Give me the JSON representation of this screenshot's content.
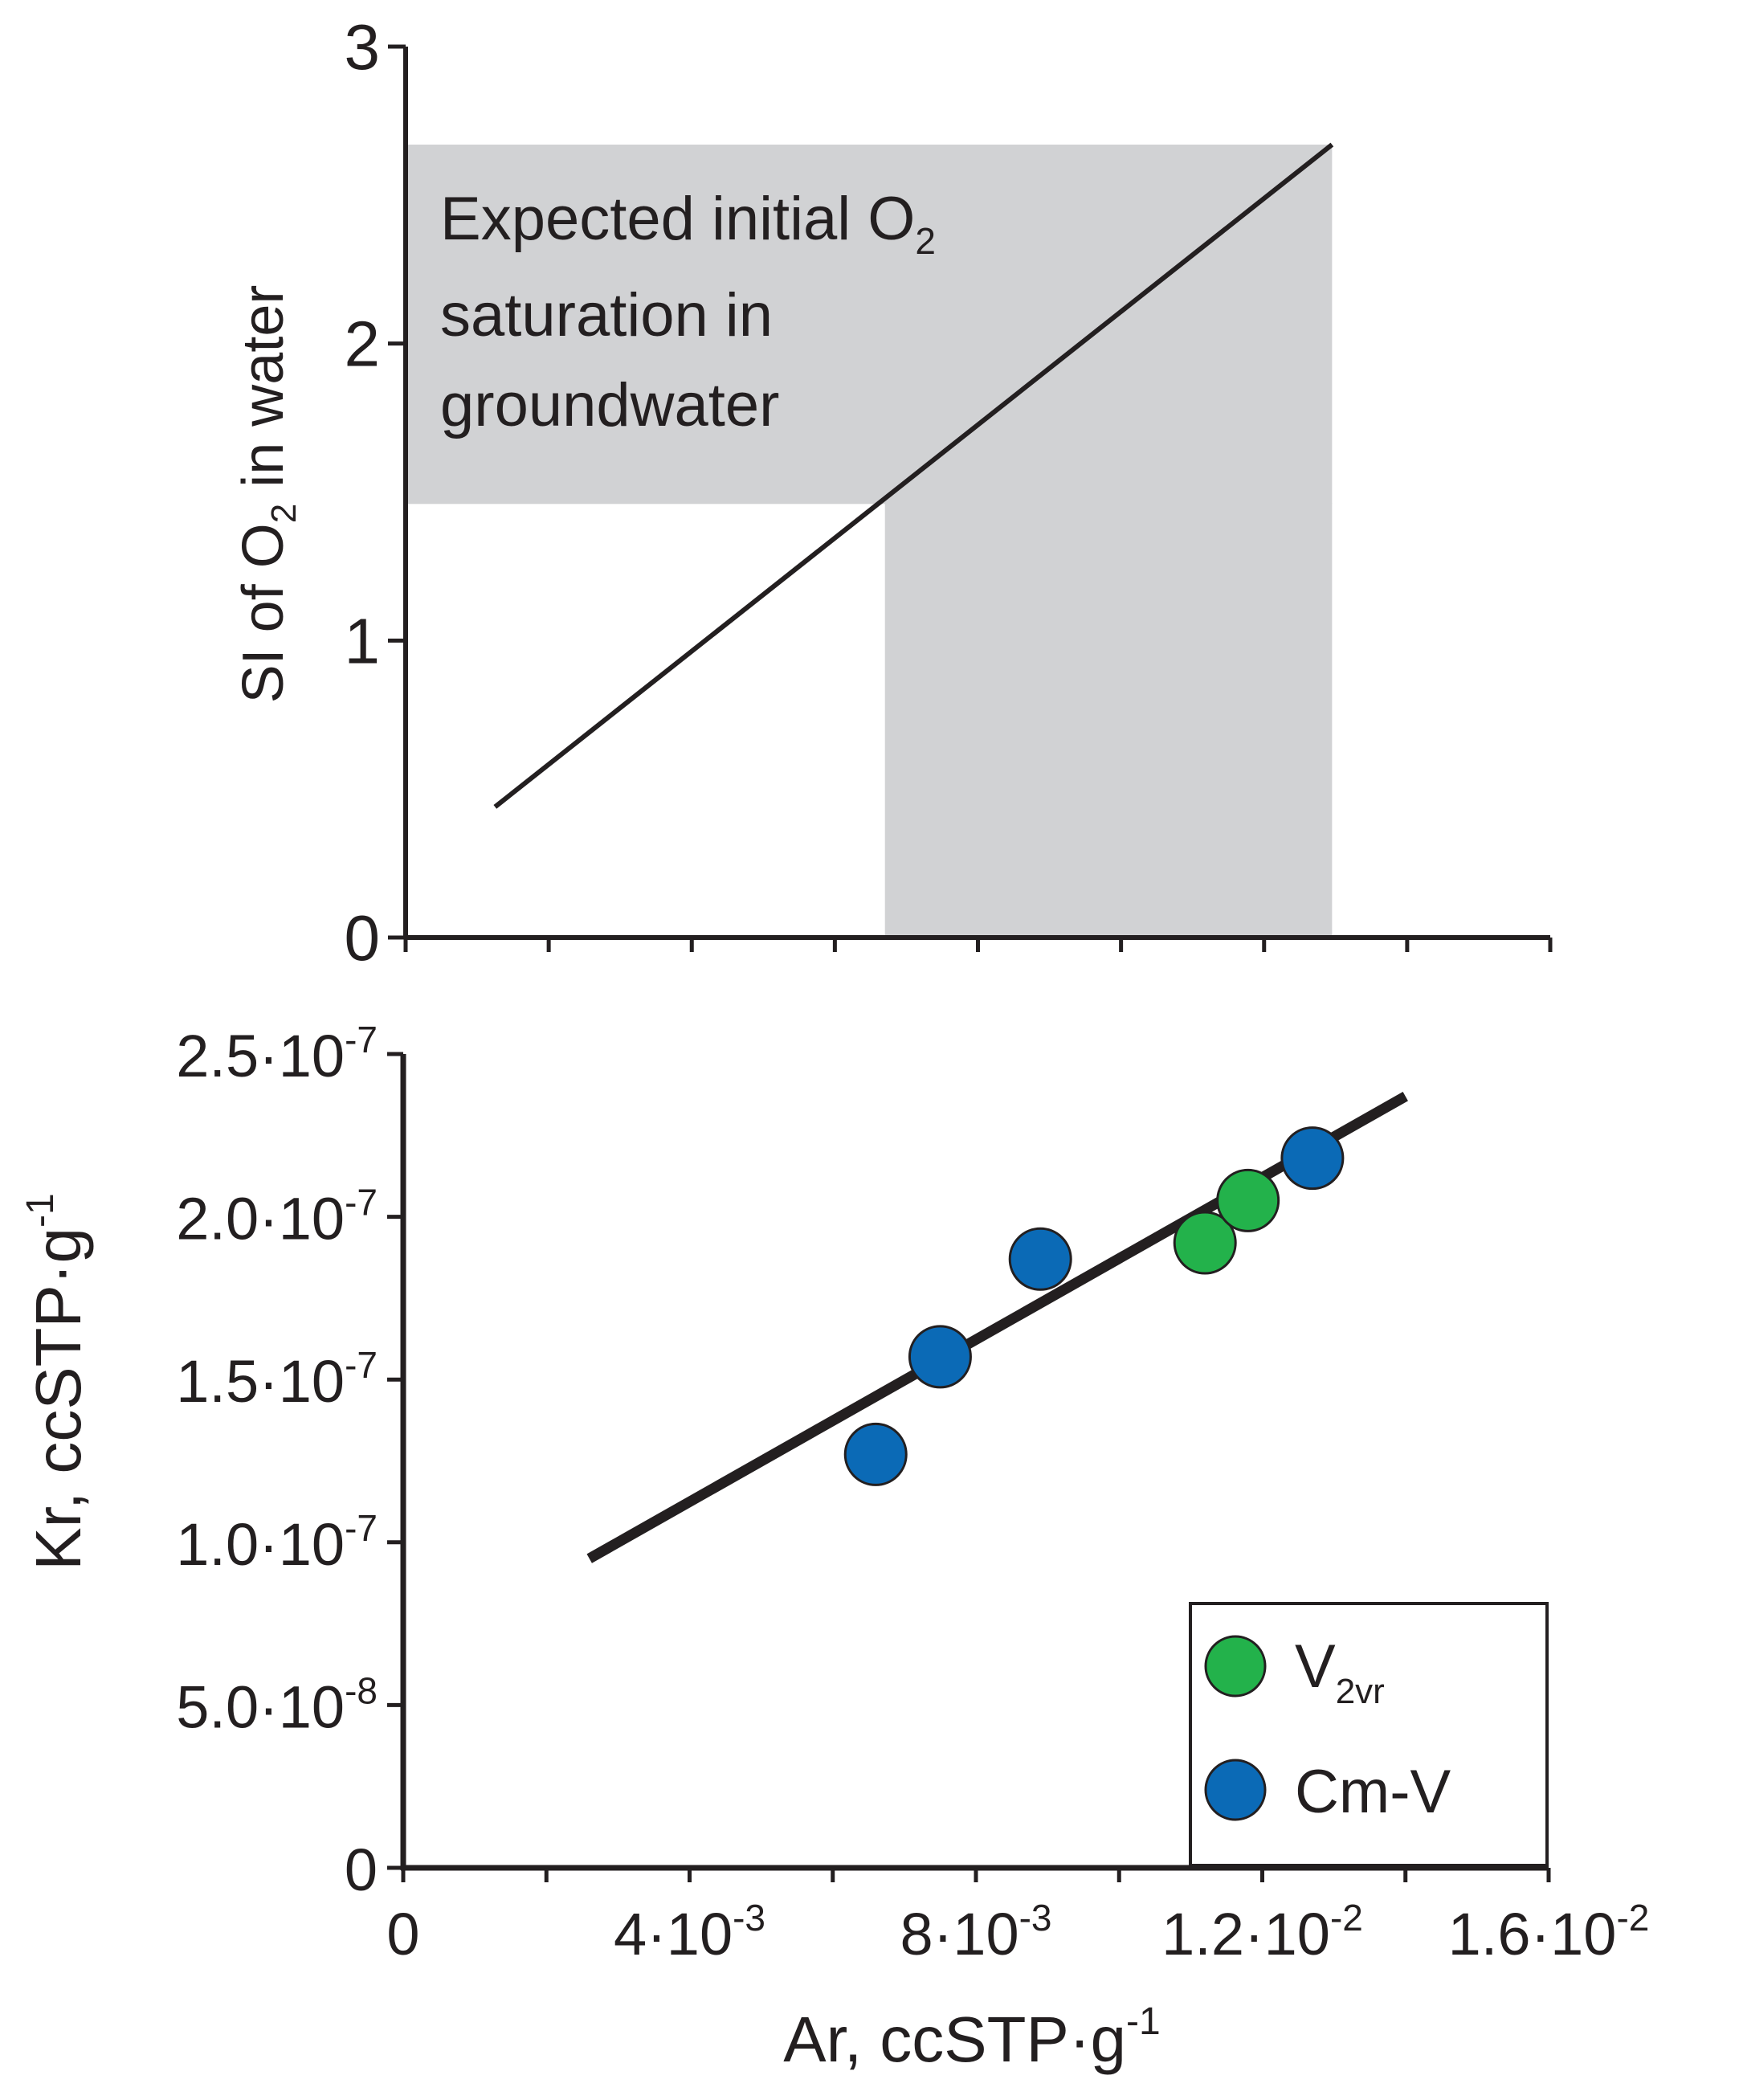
{
  "colors": {
    "shade": "#d1d2d4",
    "axis": "#231f20",
    "v2vr": "#23b24b",
    "cmv": "#0b6ab6"
  },
  "chart_data": [
    {
      "type": "line",
      "panel": "top",
      "ylabel": {
        "pre": "SI of O",
        "sub": "2",
        "post": " in water"
      },
      "ylim": [
        0,
        3
      ],
      "yticks": [
        {
          "value": 0,
          "label": "0"
        },
        {
          "value": 1,
          "label": "1"
        },
        {
          "value": 2,
          "label": "2"
        },
        {
          "value": 3,
          "label": "3"
        }
      ],
      "xlim": [
        0,
        0.016
      ],
      "xticks": [
        0,
        0.002,
        0.004,
        0.006,
        0.008,
        0.01,
        0.012,
        0.014,
        0.016
      ],
      "line": {
        "x": [
          0.00125,
          0.01295
        ],
        "y": [
          0.44,
          2.67
        ]
      },
      "shaded_region": {
        "y_band": [
          1.46,
          2.67
        ],
        "x_band": [
          0.0067,
          0.01295
        ]
      },
      "annotation": {
        "line1_pre": "Expected initial O",
        "line1_sub": "2",
        "line2": "saturation in",
        "line3": "groundwater"
      }
    },
    {
      "type": "scatter",
      "panel": "bottom",
      "xlabel": {
        "pre": "Ar, ccSTP·g",
        "sup": "-1"
      },
      "ylabel": {
        "pre": "Kr, ccSTP·g",
        "sup": "-1"
      },
      "xlim": [
        0,
        0.016
      ],
      "ylim": [
        0,
        2.5e-07
      ],
      "xticks_minor": [
        0,
        0.002,
        0.004,
        0.006,
        0.008,
        0.01,
        0.012,
        0.014,
        0.016
      ],
      "xtick_labels": [
        {
          "value": 0,
          "pre": "0",
          "sup": ""
        },
        {
          "value": 0.004,
          "pre": "4·10",
          "sup": "-3"
        },
        {
          "value": 0.008,
          "pre": "8·10",
          "sup": "-3"
        },
        {
          "value": 0.012,
          "pre": "1.2·10",
          "sup": "-2"
        },
        {
          "value": 0.016,
          "pre": "1.6·10",
          "sup": "-2"
        }
      ],
      "ytick_labels": [
        {
          "value": 0,
          "pre": "0",
          "sup": ""
        },
        {
          "value": 5e-08,
          "pre": "5.0·10",
          "sup": "-8"
        },
        {
          "value": 1e-07,
          "pre": "1.0·10",
          "sup": "-7"
        },
        {
          "value": 1.5e-07,
          "pre": "1.5·10",
          "sup": "-7"
        },
        {
          "value": 2e-07,
          "pre": "2.0·10",
          "sup": "-7"
        },
        {
          "value": 2.5e-07,
          "pre": "2.5·10",
          "sup": "-7"
        }
      ],
      "fit_line": {
        "x": [
          0.0026,
          0.014
        ],
        "y": [
          9.5e-08,
          2.37e-07
        ]
      },
      "series": [
        {
          "name": "V2vr",
          "label_main": "V",
          "label_sub": "2vr",
          "color": "#23b24b",
          "points": [
            {
              "x": 0.0112,
              "y": 1.92e-07
            },
            {
              "x": 0.0118,
              "y": 2.05e-07
            }
          ]
        },
        {
          "name": "Cm-V",
          "label_main": "Cm-V",
          "label_sub": "",
          "color": "#0b6ab6",
          "points": [
            {
              "x": 0.0066,
              "y": 1.27e-07
            },
            {
              "x": 0.0075,
              "y": 1.57e-07
            },
            {
              "x": 0.0089,
              "y": 1.87e-07
            },
            {
              "x": 0.0127,
              "y": 2.18e-07
            }
          ]
        }
      ],
      "legend": {
        "placement": "bottom-right"
      }
    }
  ]
}
